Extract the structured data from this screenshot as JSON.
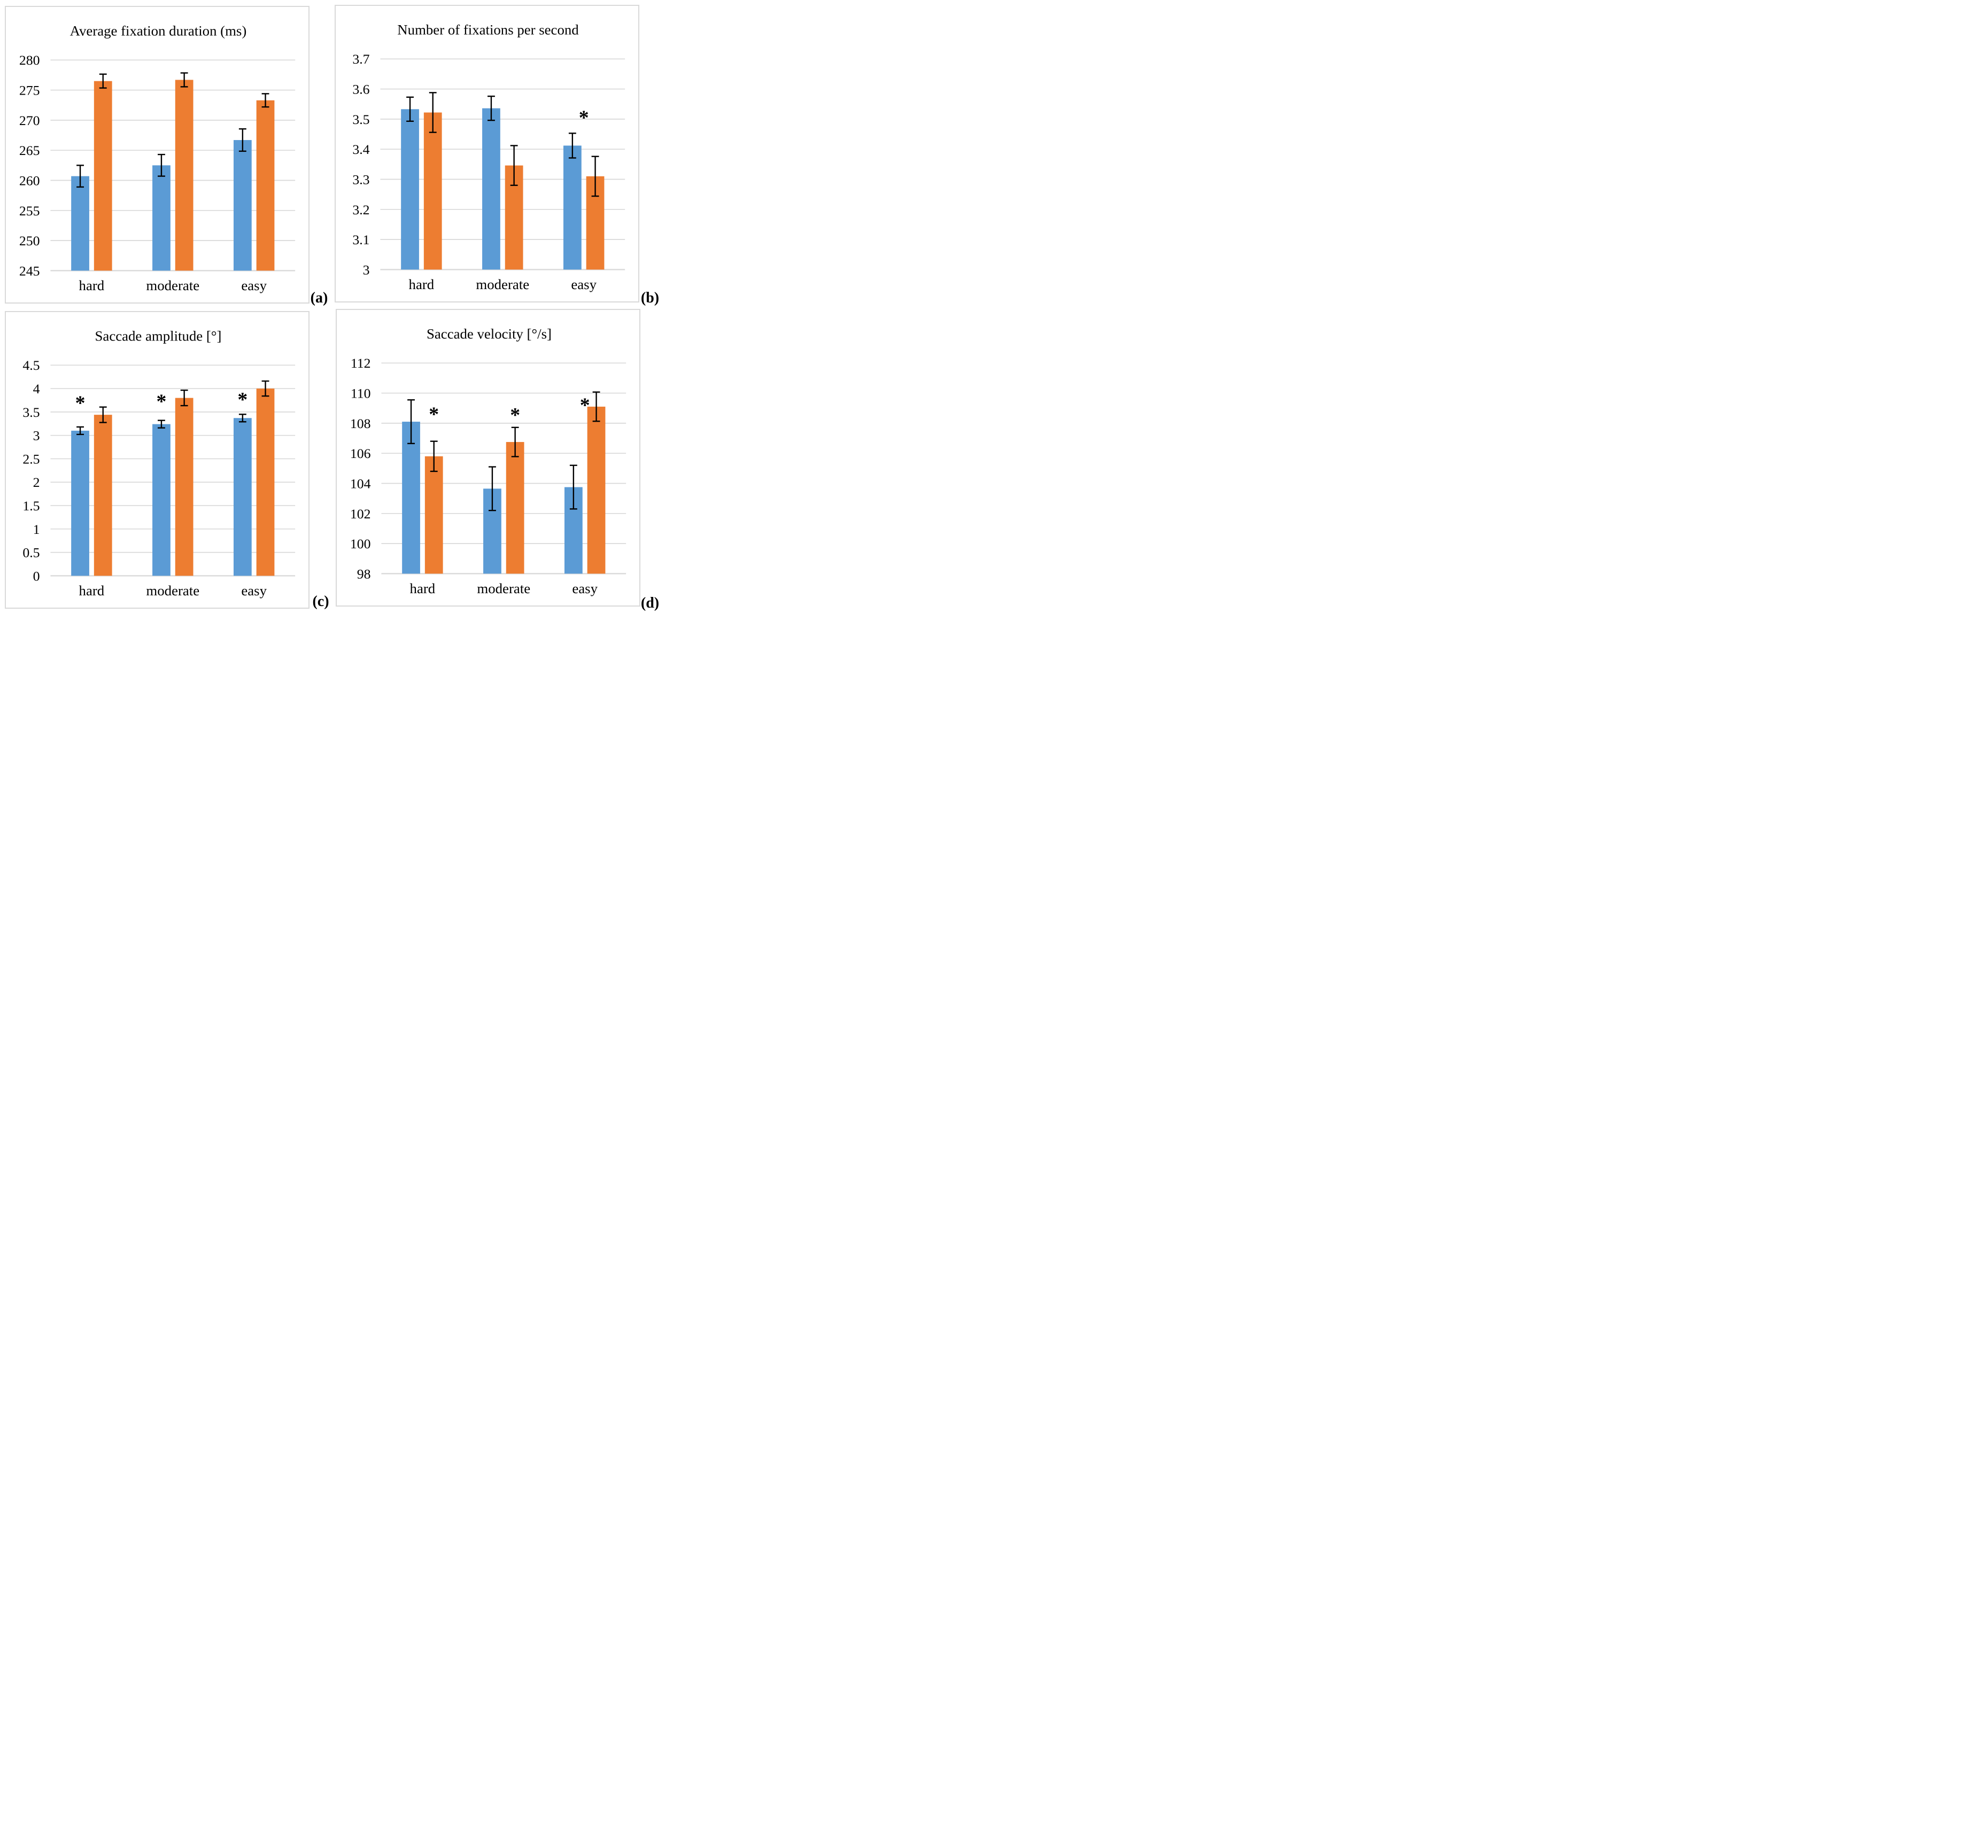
{
  "figure": {
    "background": "#FFFFFF",
    "panel_border_color": "#D9D9D9",
    "gridline_color": "#D9D9D9",
    "axis_line_color": "#D9D9D9",
    "error_bar_color": "#000000",
    "text_color": "#000000",
    "series_colors": {
      "series1": "#5B9BD5",
      "series2": "#ED7D31"
    }
  },
  "chart_data": [
    {
      "type": "bar",
      "panel_label": "(a)",
      "title": "Average fixation duration (ms)",
      "xlabel": "",
      "ylabel": "",
      "categories": [
        "hard",
        "moderate",
        "easy"
      ],
      "ylim": [
        245,
        280
      ],
      "ytick_step": 5,
      "ytick_labels": [
        "280",
        "275",
        "270",
        "265",
        "260",
        "255",
        "250",
        "245"
      ],
      "grid": true,
      "legend": "none",
      "series": [
        {
          "name": "series1",
          "color": "#5B9BD5",
          "values": [
            260.7,
            262.5,
            266.7
          ],
          "errors": [
            1.8,
            1.8,
            1.85
          ]
        },
        {
          "name": "series2",
          "color": "#ED7D31",
          "values": [
            276.5,
            276.7,
            273.3
          ],
          "errors": [
            1.15,
            1.15,
            1.1
          ]
        }
      ],
      "annotations": []
    },
    {
      "type": "bar",
      "panel_label": "(b)",
      "title": "Number of fixations per second",
      "xlabel": "",
      "ylabel": "",
      "categories": [
        "hard",
        "moderate",
        "easy"
      ],
      "ylim": [
        3,
        3.7
      ],
      "ytick_step": 0.1,
      "ytick_labels": [
        "3.7",
        "3.6",
        "3.5",
        "3.4",
        "3.3",
        "3.2",
        "3.1",
        "3"
      ],
      "grid": true,
      "legend": "none",
      "series": [
        {
          "name": "series1",
          "color": "#5B9BD5",
          "values": [
            3.533,
            3.536,
            3.412
          ],
          "errors": [
            0.04,
            0.04,
            0.041
          ]
        },
        {
          "name": "series2",
          "color": "#ED7D31",
          "values": [
            3.522,
            3.346,
            3.31
          ],
          "errors": [
            0.066,
            0.066,
            0.066
          ]
        }
      ],
      "annotations": [
        {
          "text": "*",
          "category": 2,
          "anchor": "gap",
          "y": 3.52
        }
      ]
    },
    {
      "type": "bar",
      "panel_label": "(c)",
      "title": "Saccade amplitude  [°]",
      "xlabel": "",
      "ylabel": "",
      "categories": [
        "hard",
        "moderate",
        "easy"
      ],
      "ylim": [
        0,
        4.5
      ],
      "ytick_step": 0.5,
      "ytick_labels": [
        "4.5",
        "4",
        "3.5",
        "3",
        "2.5",
        "2",
        "1.5",
        "1",
        "0.5",
        "0"
      ],
      "grid": true,
      "legend": "none",
      "series": [
        {
          "name": "series1",
          "color": "#5B9BD5",
          "values": [
            3.1,
            3.24,
            3.37
          ],
          "errors": [
            0.08,
            0.08,
            0.08
          ]
        },
        {
          "name": "series2",
          "color": "#ED7D31",
          "values": [
            3.44,
            3.8,
            4.0
          ],
          "errors": [
            0.165,
            0.165,
            0.16
          ]
        }
      ],
      "annotations": [
        {
          "text": "*",
          "category": 0,
          "anchor": "series1",
          "y": 3.79
        },
        {
          "text": "*",
          "category": 1,
          "anchor": "series1",
          "y": 3.82
        },
        {
          "text": "*",
          "category": 2,
          "anchor": "series1",
          "y": 3.86
        }
      ]
    },
    {
      "type": "bar",
      "panel_label": "(d)",
      "title": "Saccade velocity [°/s]",
      "xlabel": "",
      "ylabel": "",
      "categories": [
        "hard",
        "moderate",
        "easy"
      ],
      "ylim": [
        98,
        112
      ],
      "ytick_step": 2,
      "ytick_labels": [
        "112",
        "110",
        "108",
        "106",
        "104",
        "102",
        "100",
        "98"
      ],
      "grid": true,
      "legend": "none",
      "series": [
        {
          "name": "series1",
          "color": "#5B9BD5",
          "values": [
            108.1,
            103.65,
            103.75
          ],
          "errors": [
            1.45,
            1.45,
            1.45
          ]
        },
        {
          "name": "series2",
          "color": "#ED7D31",
          "values": [
            105.8,
            106.75,
            109.1
          ],
          "errors": [
            1.0,
            0.97,
            0.97
          ]
        }
      ],
      "annotations": [
        {
          "text": "*",
          "category": 0,
          "anchor": "series2",
          "y": 108.9
        },
        {
          "text": "*",
          "category": 1,
          "anchor": "series2",
          "y": 108.85
        },
        {
          "text": "*",
          "category": 2,
          "anchor": "gap",
          "y": 109.5
        }
      ]
    }
  ]
}
